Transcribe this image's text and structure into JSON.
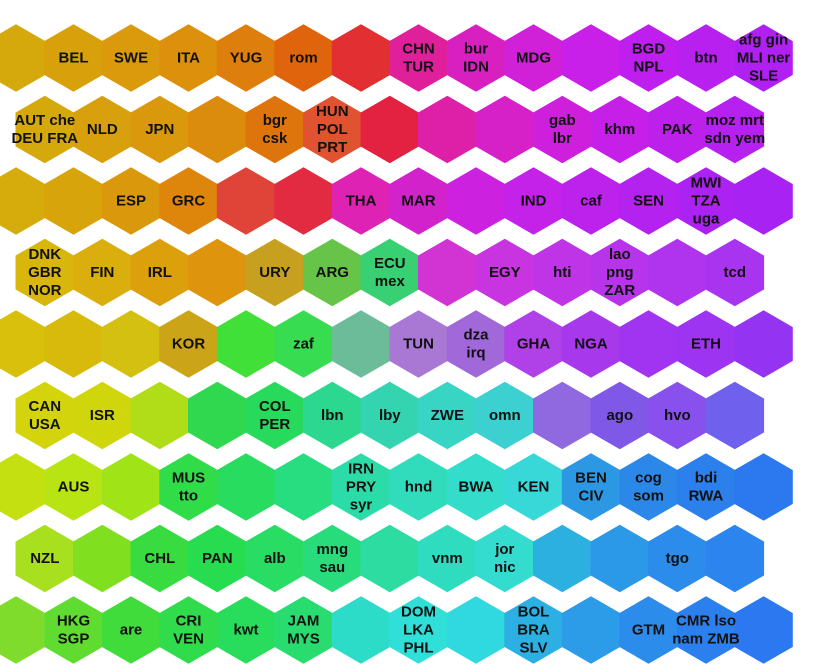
{
  "map": {
    "rows": [
      {
        "cells": [
          {
            "c": "#d5a80c",
            "labels": []
          },
          {
            "c": "#d8a10c",
            "labels": [
              "BEL"
            ]
          },
          {
            "c": "#da9a0c",
            "labels": [
              "SWE"
            ]
          },
          {
            "c": "#dc900c",
            "labels": [
              "ITA"
            ]
          },
          {
            "c": "#de7e0c",
            "labels": [
              "YUG"
            ]
          },
          {
            "c": "#e0640c",
            "labels": [
              "rom"
            ]
          },
          {
            "c": "#e23032",
            "labels": []
          },
          {
            "c": "#e0209a",
            "labels": [
              "CHN",
              "TUR"
            ]
          },
          {
            "c": "#d820c0",
            "labels": [
              "bur",
              "IDN"
            ]
          },
          {
            "c": "#d020d8",
            "labels": [
              "MDG"
            ]
          },
          {
            "c": "#c820e8",
            "labels": []
          },
          {
            "c": "#bf1fee",
            "labels": [
              "BGD",
              "NPL"
            ]
          },
          {
            "c": "#b820f0",
            "labels": [
              "btn"
            ]
          },
          {
            "c": "#b020f2",
            "labels": [
              "afg gin",
              "MLI ner",
              "SLE"
            ]
          }
        ]
      },
      {
        "cells": [
          {
            "c": "#d5a80c",
            "labels": [
              "AUT che",
              "DEU FRA"
            ]
          },
          {
            "c": "#d8a00c",
            "labels": [
              "NLD"
            ]
          },
          {
            "c": "#da980c",
            "labels": [
              "JPN"
            ]
          },
          {
            "c": "#dc8c0c",
            "labels": []
          },
          {
            "c": "#de740c",
            "labels": [
              "bgr",
              "csk"
            ]
          },
          {
            "c": "#e05230",
            "labels": [
              "HUN",
              "POL",
              "PRT"
            ]
          },
          {
            "c": "#e22240",
            "labels": []
          },
          {
            "c": "#de20a8",
            "labels": []
          },
          {
            "c": "#d620c8",
            "labels": []
          },
          {
            "c": "#ce20dc",
            "labels": [
              "gab",
              "lbr"
            ]
          },
          {
            "c": "#c620e8",
            "labels": [
              "khm"
            ]
          },
          {
            "c": "#be20ec",
            "labels": [
              "PAK"
            ]
          },
          {
            "c": "#b620f0",
            "labels": [
              "moz mrt",
              "sdn yem"
            ]
          }
        ]
      },
      {
        "cells": [
          {
            "c": "#d6ac0c",
            "labels": []
          },
          {
            "c": "#d8a40c",
            "labels": []
          },
          {
            "c": "#da980c",
            "labels": [
              "ESP"
            ]
          },
          {
            "c": "#de860c",
            "labels": [
              "GRC"
            ]
          },
          {
            "c": "#e04438",
            "labels": []
          },
          {
            "c": "#e22a40",
            "labels": []
          },
          {
            "c": "#de22b4",
            "labels": [
              "THA"
            ]
          },
          {
            "c": "#d222cc",
            "labels": [
              "MAR"
            ]
          },
          {
            "c": "#cc22e0",
            "labels": []
          },
          {
            "c": "#c422e8",
            "labels": [
              "IND"
            ]
          },
          {
            "c": "#bc22ec",
            "labels": [
              "caf"
            ]
          },
          {
            "c": "#b422f0",
            "labels": [
              "SEN"
            ]
          },
          {
            "c": "#ac22f2",
            "labels": [
              "MWI",
              "TZA",
              "uga"
            ]
          },
          {
            "c": "#a822f4",
            "labels": []
          }
        ]
      },
      {
        "cells": [
          {
            "c": "#d8b60c",
            "labels": [
              "DNK",
              "GBR",
              "NOR"
            ]
          },
          {
            "c": "#daae0c",
            "labels": [
              "FIN"
            ]
          },
          {
            "c": "#dca00c",
            "labels": [
              "IRL"
            ]
          },
          {
            "c": "#de940c",
            "labels": []
          },
          {
            "c": "#c8a020",
            "labels": [
              "URY"
            ]
          },
          {
            "c": "#66c448",
            "labels": [
              "ARG"
            ]
          },
          {
            "c": "#38d072",
            "labels": [
              "ECU",
              "mex"
            ]
          },
          {
            "c": "#d234d4",
            "labels": []
          },
          {
            "c": "#c834e0",
            "labels": [
              "EGY"
            ]
          },
          {
            "c": "#be34e6",
            "labels": [
              "hti"
            ]
          },
          {
            "c": "#b834ea",
            "labels": [
              "lao",
              "png",
              "ZAR"
            ]
          },
          {
            "c": "#b034ee",
            "labels": []
          },
          {
            "c": "#a834f0",
            "labels": [
              "tcd"
            ]
          }
        ]
      },
      {
        "cells": [
          {
            "c": "#d8c00c",
            "labels": []
          },
          {
            "c": "#d8ba0c",
            "labels": []
          },
          {
            "c": "#d4c010",
            "labels": []
          },
          {
            "c": "#cca418",
            "labels": [
              "KOR"
            ]
          },
          {
            "c": "#40e038",
            "labels": []
          },
          {
            "c": "#38dc50",
            "labels": [
              "zaf"
            ]
          },
          {
            "c": "#6cbc9a",
            "labels": []
          },
          {
            "c": "#a878d4",
            "labels": [
              "TUN"
            ]
          },
          {
            "c": "#a068d8",
            "labels": [
              "dza",
              "irq"
            ]
          },
          {
            "c": "#b040e8",
            "labels": [
              "GHA"
            ]
          },
          {
            "c": "#a838ec",
            "labels": [
              "NGA"
            ]
          },
          {
            "c": "#a034f0",
            "labels": []
          },
          {
            "c": "#9c34f2",
            "labels": [
              "ETH"
            ]
          },
          {
            "c": "#9434f2",
            "labels": []
          }
        ]
      },
      {
        "cells": [
          {
            "c": "#d4d40c",
            "labels": [
              "CAN",
              "USA"
            ]
          },
          {
            "c": "#d0d60c",
            "labels": [
              "ISR"
            ]
          },
          {
            "c": "#b0dc18",
            "labels": []
          },
          {
            "c": "#30d850",
            "labels": []
          },
          {
            "c": "#28da5c",
            "labels": [
              "COL",
              "PER"
            ]
          },
          {
            "c": "#2cd890",
            "labels": [
              "lbn"
            ]
          },
          {
            "c": "#34d4b0",
            "labels": [
              "lby"
            ]
          },
          {
            "c": "#38d4c4",
            "labels": [
              "ZWE"
            ]
          },
          {
            "c": "#3cd0d0",
            "labels": [
              "omn"
            ]
          },
          {
            "c": "#9068e0",
            "labels": []
          },
          {
            "c": "#8058e8",
            "labels": [
              "ago"
            ]
          },
          {
            "c": "#8850ec",
            "labels": [
              "hvo"
            ]
          },
          {
            "c": "#7060ee",
            "labels": []
          }
        ]
      },
      {
        "cells": [
          {
            "c": "#c4e010",
            "labels": []
          },
          {
            "c": "#b8e414",
            "labels": [
              "AUS"
            ]
          },
          {
            "c": "#a0e418",
            "labels": []
          },
          {
            "c": "#30dc48",
            "labels": [
              "MUS",
              "tto"
            ]
          },
          {
            "c": "#28dc60",
            "labels": []
          },
          {
            "c": "#28dc80",
            "labels": []
          },
          {
            "c": "#2cdca8",
            "labels": [
              "IRN",
              "PRY",
              "syr"
            ]
          },
          {
            "c": "#30dcbc",
            "labels": [
              "hnd"
            ]
          },
          {
            "c": "#34dccc",
            "labels": [
              "BWA"
            ]
          },
          {
            "c": "#38d8d8",
            "labels": [
              "KEN"
            ]
          },
          {
            "c": "#2c98e4",
            "labels": [
              "BEN",
              "CIV"
            ]
          },
          {
            "c": "#2c88e8",
            "labels": [
              "cog",
              "som"
            ]
          },
          {
            "c": "#2c80ec",
            "labels": [
              "bdi",
              "RWA"
            ]
          },
          {
            "c": "#2c78ee",
            "labels": []
          }
        ]
      },
      {
        "cells": [
          {
            "c": "#a8e020",
            "labels": [
              "NZL"
            ]
          },
          {
            "c": "#80e020",
            "labels": []
          },
          {
            "c": "#38dc40",
            "labels": [
              "CHL"
            ]
          },
          {
            "c": "#28dc50",
            "labels": [
              "PAN"
            ]
          },
          {
            "c": "#28dc64",
            "labels": [
              "alb"
            ]
          },
          {
            "c": "#28dc7c",
            "labels": [
              "mng",
              "sau"
            ]
          },
          {
            "c": "#2cdca0",
            "labels": []
          },
          {
            "c": "#30dcc0",
            "labels": [
              "vnm"
            ]
          },
          {
            "c": "#34dcd0",
            "labels": [
              "jor",
              "nic"
            ]
          },
          {
            "c": "#2cb0e0",
            "labels": []
          },
          {
            "c": "#2c98e8",
            "labels": []
          },
          {
            "c": "#2c8cec",
            "labels": [
              "tgo"
            ]
          },
          {
            "c": "#2c84ee",
            "labels": []
          }
        ]
      },
      {
        "cells": [
          {
            "c": "#80dc2c",
            "labels": []
          },
          {
            "c": "#60dc30",
            "labels": [
              "HKG",
              "SGP"
            ]
          },
          {
            "c": "#40dc3c",
            "labels": [
              "are"
            ]
          },
          {
            "c": "#30dc4c",
            "labels": [
              "CRI",
              "VEN"
            ]
          },
          {
            "c": "#28dc5c",
            "labels": [
              "kwt"
            ]
          },
          {
            "c": "#28dc70",
            "labels": [
              "JAM",
              "MYS"
            ]
          },
          {
            "c": "#2cdcc8",
            "labels": []
          },
          {
            "c": "#30e0d8",
            "labels": [
              "DOM",
              "LKA",
              "PHL"
            ]
          },
          {
            "c": "#30d8e0",
            "labels": []
          },
          {
            "c": "#2cb0e4",
            "labels": [
              "BOL",
              "BRA",
              "SLV"
            ]
          },
          {
            "c": "#2c9ce8",
            "labels": []
          },
          {
            "c": "#2c8cec",
            "labels": [
              "GTM"
            ]
          },
          {
            "c": "#2c80ee",
            "labels": [
              "CMR lso",
              "nam ZMB"
            ]
          },
          {
            "c": "#2c78f0",
            "labels": []
          }
        ]
      }
    ]
  }
}
